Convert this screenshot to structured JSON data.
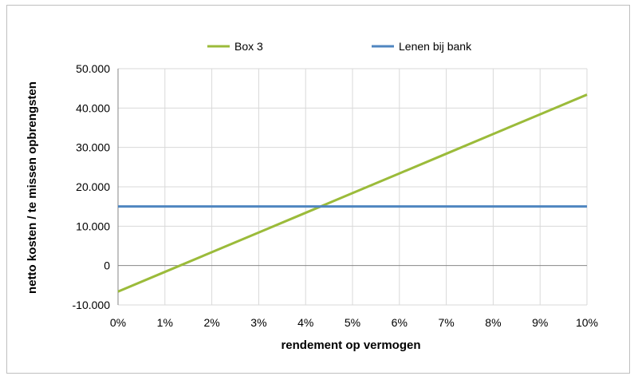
{
  "chart_data": {
    "type": "line",
    "xlabel": "rendement op vermogen",
    "ylabel": "netto kosten / te missen opbrengsten",
    "x": [
      0,
      1,
      2,
      3,
      4,
      5,
      6,
      7,
      8,
      9,
      10
    ],
    "x_tick_labels": [
      "0%",
      "1%",
      "2%",
      "3%",
      "4%",
      "5%",
      "6%",
      "7%",
      "8%",
      "9%",
      "10%"
    ],
    "xlim": [
      0,
      10
    ],
    "ylim": [
      -10000,
      50000
    ],
    "y_ticks": [
      -10000,
      0,
      10000,
      20000,
      30000,
      40000,
      50000
    ],
    "y_tick_labels": [
      "-10.000",
      "0",
      "10.000",
      "20.000",
      "30.000",
      "40.000",
      "50.000"
    ],
    "grid": true,
    "legend_position": "top",
    "series": [
      {
        "name": "Box 3",
        "color": "#9bbb3a",
        "values": [
          -6600,
          -1600,
          3400,
          8400,
          13400,
          18400,
          23400,
          28400,
          33400,
          38400,
          43400
        ]
      },
      {
        "name": "Lenen bij bank",
        "color": "#4f86c0",
        "values": [
          15000,
          15000,
          15000,
          15000,
          15000,
          15000,
          15000,
          15000,
          15000,
          15000,
          15000
        ]
      }
    ]
  }
}
